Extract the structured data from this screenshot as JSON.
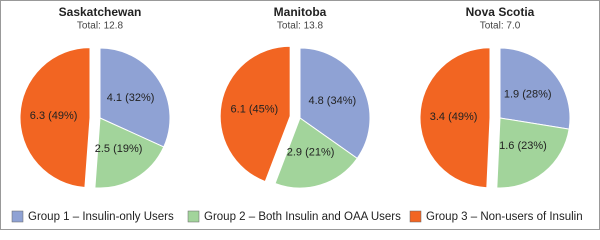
{
  "chart_data": [
    {
      "type": "pie",
      "title": "Saskatchewan",
      "subtitle": "Total: 12.8",
      "categories": [
        "Group 1 – Insulin-only Users",
        "Group 2 – Both Insulin and OAA Users",
        "Group 3 – Non-users of Insulin"
      ],
      "values": [
        4.1,
        2.5,
        6.3
      ],
      "value_labels": [
        "4.1 (32%)",
        "2.5 (19%)",
        "6.3 (49%)"
      ],
      "colors": [
        "#8fa2d4",
        "#a2d49b",
        "#f26522"
      ],
      "explode": [
        false,
        false,
        true
      ]
    },
    {
      "type": "pie",
      "title": "Manitoba",
      "subtitle": "Total: 13.8",
      "categories": [
        "Group 1 – Insulin-only Users",
        "Group 2 – Both Insulin and OAA Users",
        "Group 3 – Non-users of Insulin"
      ],
      "values": [
        4.8,
        2.9,
        6.1
      ],
      "value_labels": [
        "4.8 (34%)",
        "2.9 (21%)",
        "6.1 (45%)"
      ],
      "colors": [
        "#8fa2d4",
        "#a2d49b",
        "#f26522"
      ],
      "explode": [
        false,
        false,
        true
      ]
    },
    {
      "type": "pie",
      "title": "Nova Scotia",
      "subtitle": "Total: 7.0",
      "categories": [
        "Group 1 – Insulin-only Users",
        "Group 2 – Both Insulin and OAA Users",
        "Group 3 – Non-users of Insulin"
      ],
      "values": [
        1.9,
        1.6,
        3.4
      ],
      "value_labels": [
        "1.9 (28%)",
        "1.6 (23%)",
        "3.4 (49%)"
      ],
      "colors": [
        "#8fa2d4",
        "#a2d49b",
        "#f26522"
      ],
      "explode": [
        false,
        false,
        true
      ]
    }
  ]
}
